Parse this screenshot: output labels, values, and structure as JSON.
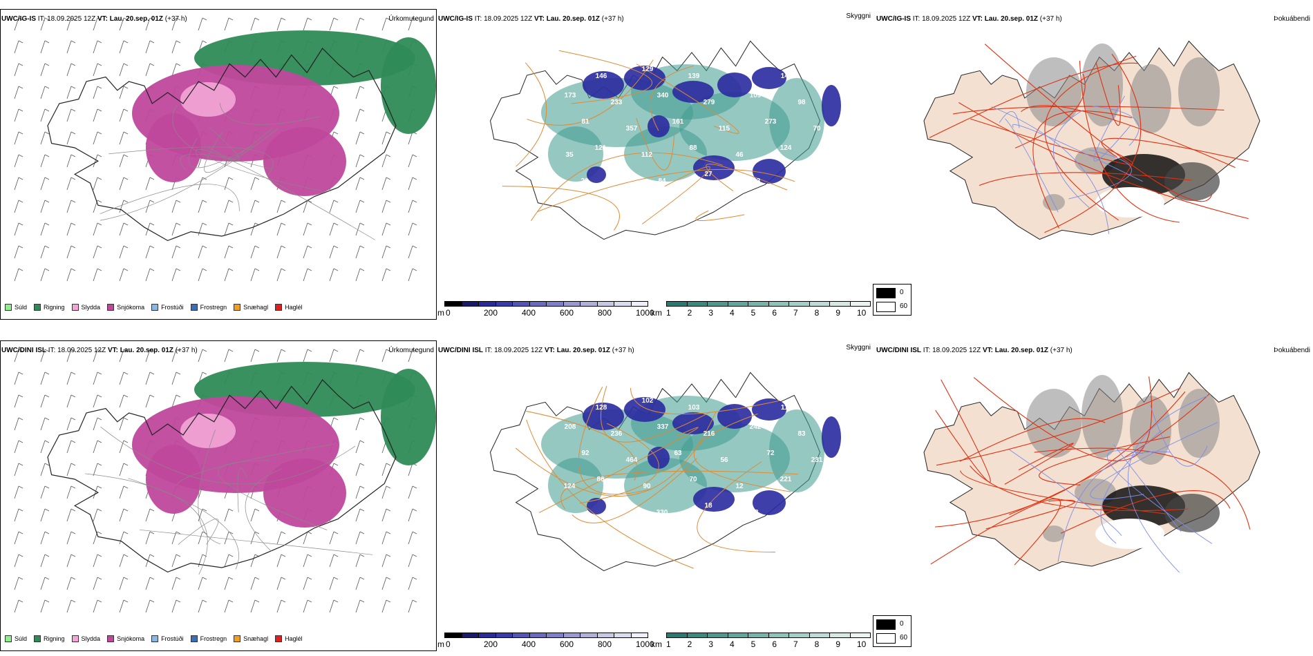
{
  "rows": [
    {
      "model": "UWC/IG-IS",
      "it_label": "IT:",
      "it_value": "18.09.2025 12Z",
      "vt_label": "VT:",
      "vt_value": "Lau. 20.sep. 01Z",
      "lead": "(+37 h)",
      "panels": [
        {
          "title": "Úrkomutegund"
        },
        {
          "title": "Skyggni"
        },
        {
          "title": "Þokuábendi"
        }
      ],
      "labels": [
        "166",
        "146",
        "129",
        "139",
        "80",
        "144",
        "173",
        "233",
        "340",
        "279",
        "109",
        "98",
        "81",
        "357",
        "161",
        "115",
        "273",
        "70",
        "121",
        "112",
        "88",
        "46",
        "124",
        "35",
        "176",
        "84",
        "27",
        "103",
        "95",
        "20"
      ]
    },
    {
      "model": "UWC/DINI ISL",
      "it_label": "IT:",
      "it_value": "18.09.2025 12Z",
      "vt_label": "VT:",
      "vt_value": "Lau. 20.sep. 01Z",
      "lead": "(+37 h)",
      "panels": [
        {
          "title": "Úrkomutegund"
        },
        {
          "title": "Skyggni"
        },
        {
          "title": "Þokuábendi"
        }
      ],
      "labels": [
        "252",
        "128",
        "102",
        "103",
        "240",
        "114",
        "208",
        "236",
        "337",
        "216",
        "242",
        "83",
        "92",
        "464",
        "63",
        "56",
        "72",
        "231",
        "86",
        "90",
        "70",
        "12",
        "221",
        "124",
        "80",
        "330",
        "18",
        "58"
      ]
    }
  ],
  "precip_legend": [
    {
      "label": "Súld",
      "color": "#90ee90"
    },
    {
      "label": "Rigning",
      "color": "#2e8b57"
    },
    {
      "label": "Slydda",
      "color": "#f4a6d7"
    },
    {
      "label": "Snjókoma",
      "color": "#c0489c"
    },
    {
      "label": "Frostúði",
      "color": "#87b8e8"
    },
    {
      "label": "Frostregn",
      "color": "#3a6fb8"
    },
    {
      "label": "Snæhagl",
      "color": "#f0a020"
    },
    {
      "label": "Haglél",
      "color": "#e02020"
    }
  ],
  "ceiling_bar": {
    "unit": "m",
    "ticks": [
      "0",
      "200",
      "400",
      "600",
      "800",
      "1000"
    ]
  },
  "vis_bar": {
    "unit": "km",
    "ticks": [
      "1",
      "2",
      "3",
      "4",
      "5",
      "6",
      "7",
      "8",
      "9",
      "10"
    ]
  },
  "fog_legend": {
    "low": "0",
    "high": "60"
  },
  "colors": {
    "rain": "#2e8b57",
    "snow": "#c0489c",
    "sleet": "#f4a6d7",
    "cloud_dark": "#2a2aa0",
    "cloud_teal": "#3f9a90",
    "coast_orange": "#e08a30",
    "land_fog": "#f3e0d0",
    "road_red": "#e03010",
    "river_blue": "#7d8ce8"
  }
}
